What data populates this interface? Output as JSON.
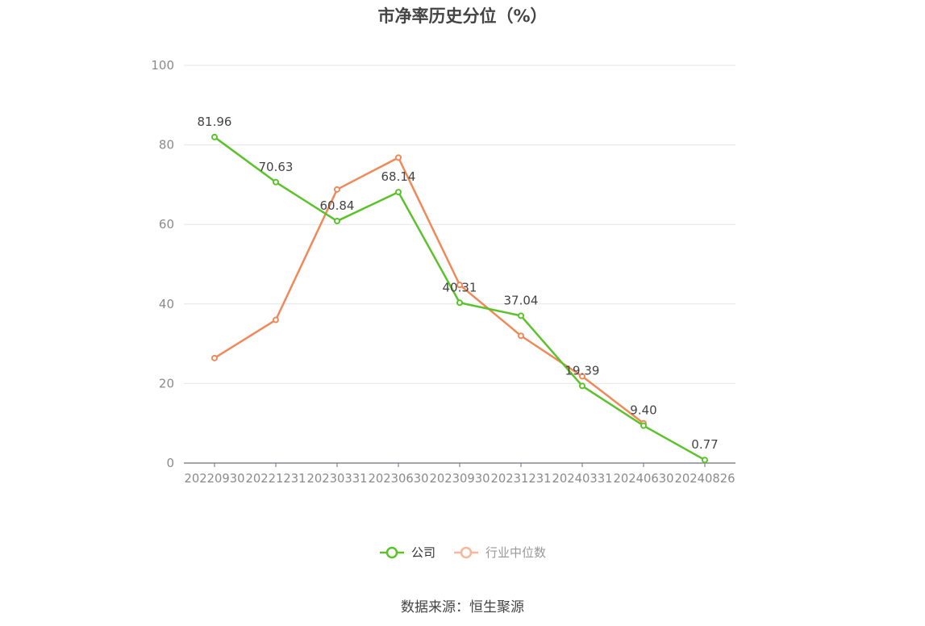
{
  "chart_data": {
    "type": "line",
    "title": "市净率历史分位（%）",
    "x": [
      "20220930",
      "20221231",
      "20230331",
      "20230630",
      "20230930",
      "20231231",
      "20240331",
      "20240630",
      "20240826"
    ],
    "series": [
      {
        "name": "公司",
        "color": "#5cc22c",
        "values": [
          81.96,
          70.63,
          60.84,
          68.14,
          40.31,
          37.04,
          19.39,
          9.4,
          0.77
        ],
        "labels": [
          "81.96",
          "70.63",
          "60.84",
          "68.14",
          "40.31",
          "37.04",
          "19.39",
          "9.40",
          "0.77"
        ]
      },
      {
        "name": "行业中位数",
        "color": "#f0895a",
        "values": [
          26.4,
          36.0,
          68.8,
          76.8,
          44.8,
          32.0,
          21.8,
          10.0,
          null
        ]
      }
    ],
    "yticks": [
      0,
      20,
      40,
      60,
      80,
      100
    ],
    "ylim": [
      0,
      100
    ],
    "grid": true,
    "legend_position": "bottom"
  },
  "source": "数据来源：恒生聚源"
}
